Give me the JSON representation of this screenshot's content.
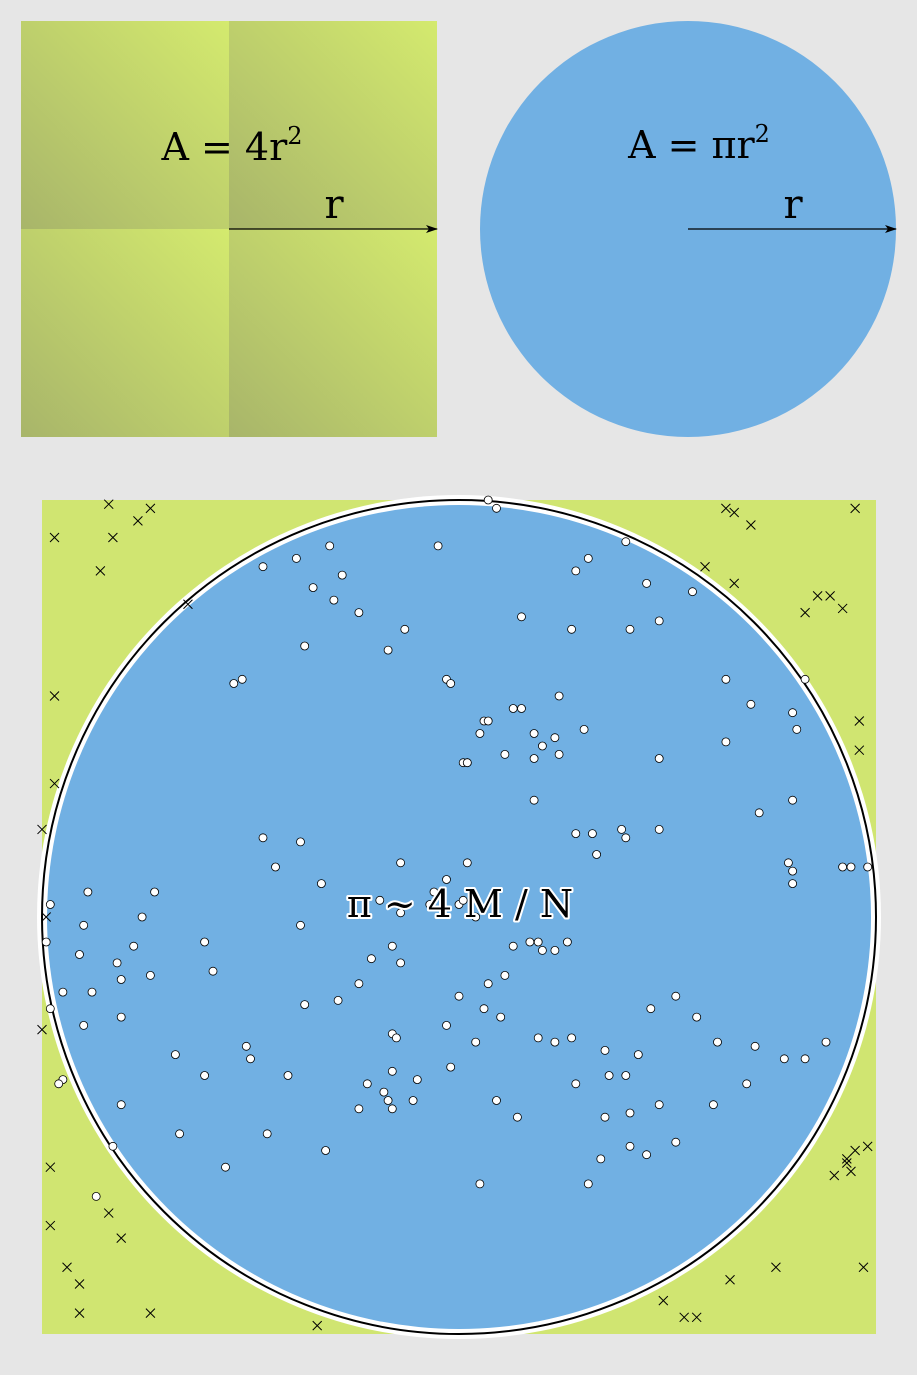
{
  "square": {
    "area_formula": "A = 4r",
    "area_exponent": "2",
    "radius_label": "r"
  },
  "circle": {
    "area_formula": "A = πr",
    "area_exponent": "2",
    "radius_label": "r"
  },
  "monte_carlo": {
    "estimate_formula": "π ~ 4 M / N",
    "inside_marker": "circle-outline",
    "outside_marker": "cross",
    "colors": {
      "square": "#d0e571",
      "circle": "#71b0e3",
      "quadrant_dark": "#a8b56a",
      "quadrant_light": "#d2e96f"
    },
    "inside_points": [
      [
        0.07,
        -1.0
      ],
      [
        0.09,
        -0.98
      ],
      [
        -0.05,
        -0.89
      ],
      [
        -0.31,
        -0.89
      ],
      [
        -0.39,
        -0.86
      ],
      [
        -0.47,
        -0.84
      ],
      [
        -0.28,
        -0.82
      ],
      [
        -0.35,
        -0.79
      ],
      [
        -0.24,
        -0.73
      ],
      [
        -0.3,
        -0.76
      ],
      [
        -0.37,
        -0.65
      ],
      [
        -0.52,
        -0.57
      ],
      [
        -0.54,
        -0.56
      ],
      [
        -0.17,
        -0.64
      ],
      [
        -0.13,
        -0.69
      ],
      [
        -0.03,
        -0.57
      ],
      [
        -0.02,
        -0.56
      ],
      [
        0.15,
        -0.72
      ],
      [
        0.27,
        -0.69
      ],
      [
        0.41,
        -0.69
      ],
      [
        0.45,
        -0.8
      ],
      [
        0.31,
        -0.86
      ],
      [
        0.28,
        -0.83
      ],
      [
        0.56,
        -0.78
      ],
      [
        0.4,
        -0.9
      ],
      [
        0.48,
        -0.71
      ],
      [
        0.24,
        -0.53
      ],
      [
        0.23,
        -0.43
      ],
      [
        0.3,
        -0.45
      ],
      [
        0.2,
        -0.41
      ],
      [
        0.18,
        -0.44
      ],
      [
        0.13,
        -0.5
      ],
      [
        0.15,
        -0.5
      ],
      [
        0.06,
        -0.47
      ],
      [
        0.07,
        -0.47
      ],
      [
        0.01,
        -0.37
      ],
      [
        0.02,
        -0.37
      ],
      [
        0.05,
        -0.44
      ],
      [
        0.02,
        -0.37
      ],
      [
        0.11,
        -0.39
      ],
      [
        0.18,
        -0.38
      ],
      [
        0.24,
        -0.39
      ],
      [
        0.18,
        -0.28
      ],
      [
        0.4,
        -0.19
      ],
      [
        0.39,
        -0.21
      ],
      [
        0.32,
        -0.2
      ],
      [
        0.48,
        -0.38
      ],
      [
        0.64,
        -0.42
      ],
      [
        0.8,
        -0.28
      ],
      [
        0.83,
        -0.57
      ],
      [
        0.8,
        -0.49
      ],
      [
        0.81,
        -0.45
      ],
      [
        0.64,
        -0.57
      ],
      [
        0.7,
        -0.51
      ],
      [
        0.72,
        -0.25
      ],
      [
        0.98,
        -0.12
      ],
      [
        0.94,
        -0.12
      ],
      [
        0.92,
        -0.12
      ],
      [
        0.8,
        -0.11
      ],
      [
        0.79,
        -0.13
      ],
      [
        0.8,
        -0.08
      ],
      [
        0.48,
        -0.21
      ],
      [
        0.33,
        -0.15
      ],
      [
        0.28,
        -0.2
      ],
      [
        0.2,
        0.08
      ],
      [
        0.23,
        0.08
      ],
      [
        0.17,
        0.06
      ],
      [
        0.26,
        0.06
      ],
      [
        0.19,
        0.06
      ],
      [
        0.13,
        0.07
      ],
      [
        0.04,
        0.0
      ],
      [
        0.0,
        -0.03
      ],
      [
        0.01,
        -0.04
      ],
      [
        0.02,
        -0.13
      ],
      [
        -0.07,
        -0.03
      ],
      [
        -0.03,
        -0.09
      ],
      [
        -0.06,
        -0.06
      ],
      [
        -0.14,
        -0.01
      ],
      [
        -0.19,
        -0.04
      ],
      [
        -0.14,
        -0.13
      ],
      [
        -0.33,
        -0.08
      ],
      [
        -0.38,
        -0.18
      ],
      [
        -0.47,
        -0.19
      ],
      [
        -0.44,
        -0.12
      ],
      [
        -0.38,
        0.02
      ],
      [
        -0.14,
        0.11
      ],
      [
        -0.16,
        0.07
      ],
      [
        -0.21,
        0.1
      ],
      [
        -0.24,
        0.16
      ],
      [
        -0.29,
        0.2
      ],
      [
        -0.37,
        0.21
      ],
      [
        -0.41,
        0.38
      ],
      [
        -0.59,
        0.13
      ],
      [
        -0.61,
        0.06
      ],
      [
        -0.78,
        0.07
      ],
      [
        -0.82,
        0.11
      ],
      [
        -0.81,
        0.15
      ],
      [
        -0.81,
        0.24
      ],
      [
        -0.91,
        0.09
      ],
      [
        -0.88,
        0.18
      ],
      [
        -0.9,
        0.26
      ],
      [
        -0.95,
        0.39
      ],
      [
        -0.96,
        0.4
      ],
      [
        -0.98,
        0.22
      ],
      [
        -0.95,
        0.18
      ],
      [
        -0.9,
        0.02
      ],
      [
        -0.89,
        -0.06
      ],
      [
        -0.98,
        -0.03
      ],
      [
        -0.99,
        0.06
      ],
      [
        -0.73,
        -0.06
      ],
      [
        -0.76,
        0.0
      ],
      [
        -0.74,
        0.14
      ],
      [
        -0.68,
        0.33
      ],
      [
        -0.61,
        0.38
      ],
      [
        -0.5,
        0.34
      ],
      [
        -0.51,
        0.31
      ],
      [
        -0.46,
        0.52
      ],
      [
        -0.67,
        0.52
      ],
      [
        -0.81,
        0.45
      ],
      [
        -0.83,
        0.55
      ],
      [
        -0.87,
        0.67
      ],
      [
        -0.56,
        0.6
      ],
      [
        -0.32,
        0.56
      ],
      [
        -0.24,
        0.46
      ],
      [
        -0.22,
        0.4
      ],
      [
        -0.18,
        0.42
      ],
      [
        -0.16,
        0.46
      ],
      [
        -0.11,
        0.44
      ],
      [
        -0.16,
        0.37
      ],
      [
        -0.16,
        0.28
      ],
      [
        -0.15,
        0.29
      ],
      [
        -0.17,
        0.44
      ],
      [
        -0.1,
        0.39
      ],
      [
        -0.02,
        0.36
      ],
      [
        0.04,
        0.3
      ],
      [
        0.0,
        0.19
      ],
      [
        -0.03,
        0.26
      ],
      [
        0.06,
        0.22
      ],
      [
        0.07,
        0.16
      ],
      [
        0.11,
        0.14
      ],
      [
        0.1,
        0.24
      ],
      [
        0.19,
        0.29
      ],
      [
        0.27,
        0.29
      ],
      [
        0.23,
        0.3
      ],
      [
        0.35,
        0.32
      ],
      [
        0.43,
        0.33
      ],
      [
        0.46,
        0.22
      ],
      [
        0.52,
        0.19
      ],
      [
        0.57,
        0.24
      ],
      [
        0.62,
        0.3
      ],
      [
        0.71,
        0.31
      ],
      [
        0.78,
        0.34
      ],
      [
        0.83,
        0.34
      ],
      [
        0.69,
        0.4
      ],
      [
        0.88,
        0.3
      ],
      [
        0.4,
        0.38
      ],
      [
        0.36,
        0.38
      ],
      [
        0.09,
        0.44
      ],
      [
        0.14,
        0.48
      ],
      [
        0.34,
        0.58
      ],
      [
        0.31,
        0.64
      ],
      [
        0.05,
        0.64
      ],
      [
        0.41,
        0.55
      ],
      [
        0.45,
        0.57
      ],
      [
        0.61,
        0.45
      ],
      [
        0.52,
        0.54
      ],
      [
        0.41,
        0.47
      ],
      [
        0.48,
        0.45
      ],
      [
        0.35,
        0.48
      ],
      [
        0.28,
        0.4
      ]
    ],
    "outside_points": [
      [
        -0.97,
        -0.91
      ],
      [
        -0.83,
        -0.91
      ],
      [
        -0.86,
        -0.83
      ],
      [
        -0.77,
        -0.95
      ],
      [
        -0.74,
        -0.98
      ],
      [
        -0.65,
        -0.75
      ],
      [
        -0.97,
        -0.53
      ],
      [
        -0.97,
        -0.32
      ],
      [
        -1.0,
        -0.21
      ],
      [
        -1.0,
        0.27
      ],
      [
        -0.98,
        0.6
      ],
      [
        -0.98,
        0.74
      ],
      [
        -0.84,
        0.71
      ],
      [
        -0.81,
        0.77
      ],
      [
        -0.94,
        0.84
      ],
      [
        -0.91,
        0.88
      ],
      [
        -0.91,
        0.95
      ],
      [
        -0.74,
        0.95
      ],
      [
        -0.34,
        0.98
      ],
      [
        0.54,
        0.96
      ],
      [
        0.57,
        0.96
      ],
      [
        0.49,
        0.92
      ],
      [
        0.65,
        0.87
      ],
      [
        0.76,
        0.84
      ],
      [
        0.97,
        0.84
      ],
      [
        0.9,
        0.62
      ],
      [
        0.93,
        0.59
      ],
      [
        0.94,
        0.61
      ],
      [
        0.95,
        0.56
      ],
      [
        0.98,
        0.55
      ],
      [
        0.89,
        -0.77
      ],
      [
        0.86,
        -0.77
      ],
      [
        0.83,
        -0.73
      ],
      [
        0.7,
        -0.94
      ],
      [
        0.66,
        -0.8
      ],
      [
        0.64,
        -0.98
      ],
      [
        0.66,
        -0.97
      ],
      [
        0.95,
        -0.98
      ],
      [
        0.96,
        -0.47
      ],
      [
        0.96,
        -0.4
      ],
      [
        0.92,
        -0.74
      ],
      [
        -0.99,
        0.0
      ],
      [
        0.93,
        0.58
      ],
      [
        0.59,
        -0.84
      ],
      [
        -0.84,
        -0.99
      ]
    ]
  }
}
